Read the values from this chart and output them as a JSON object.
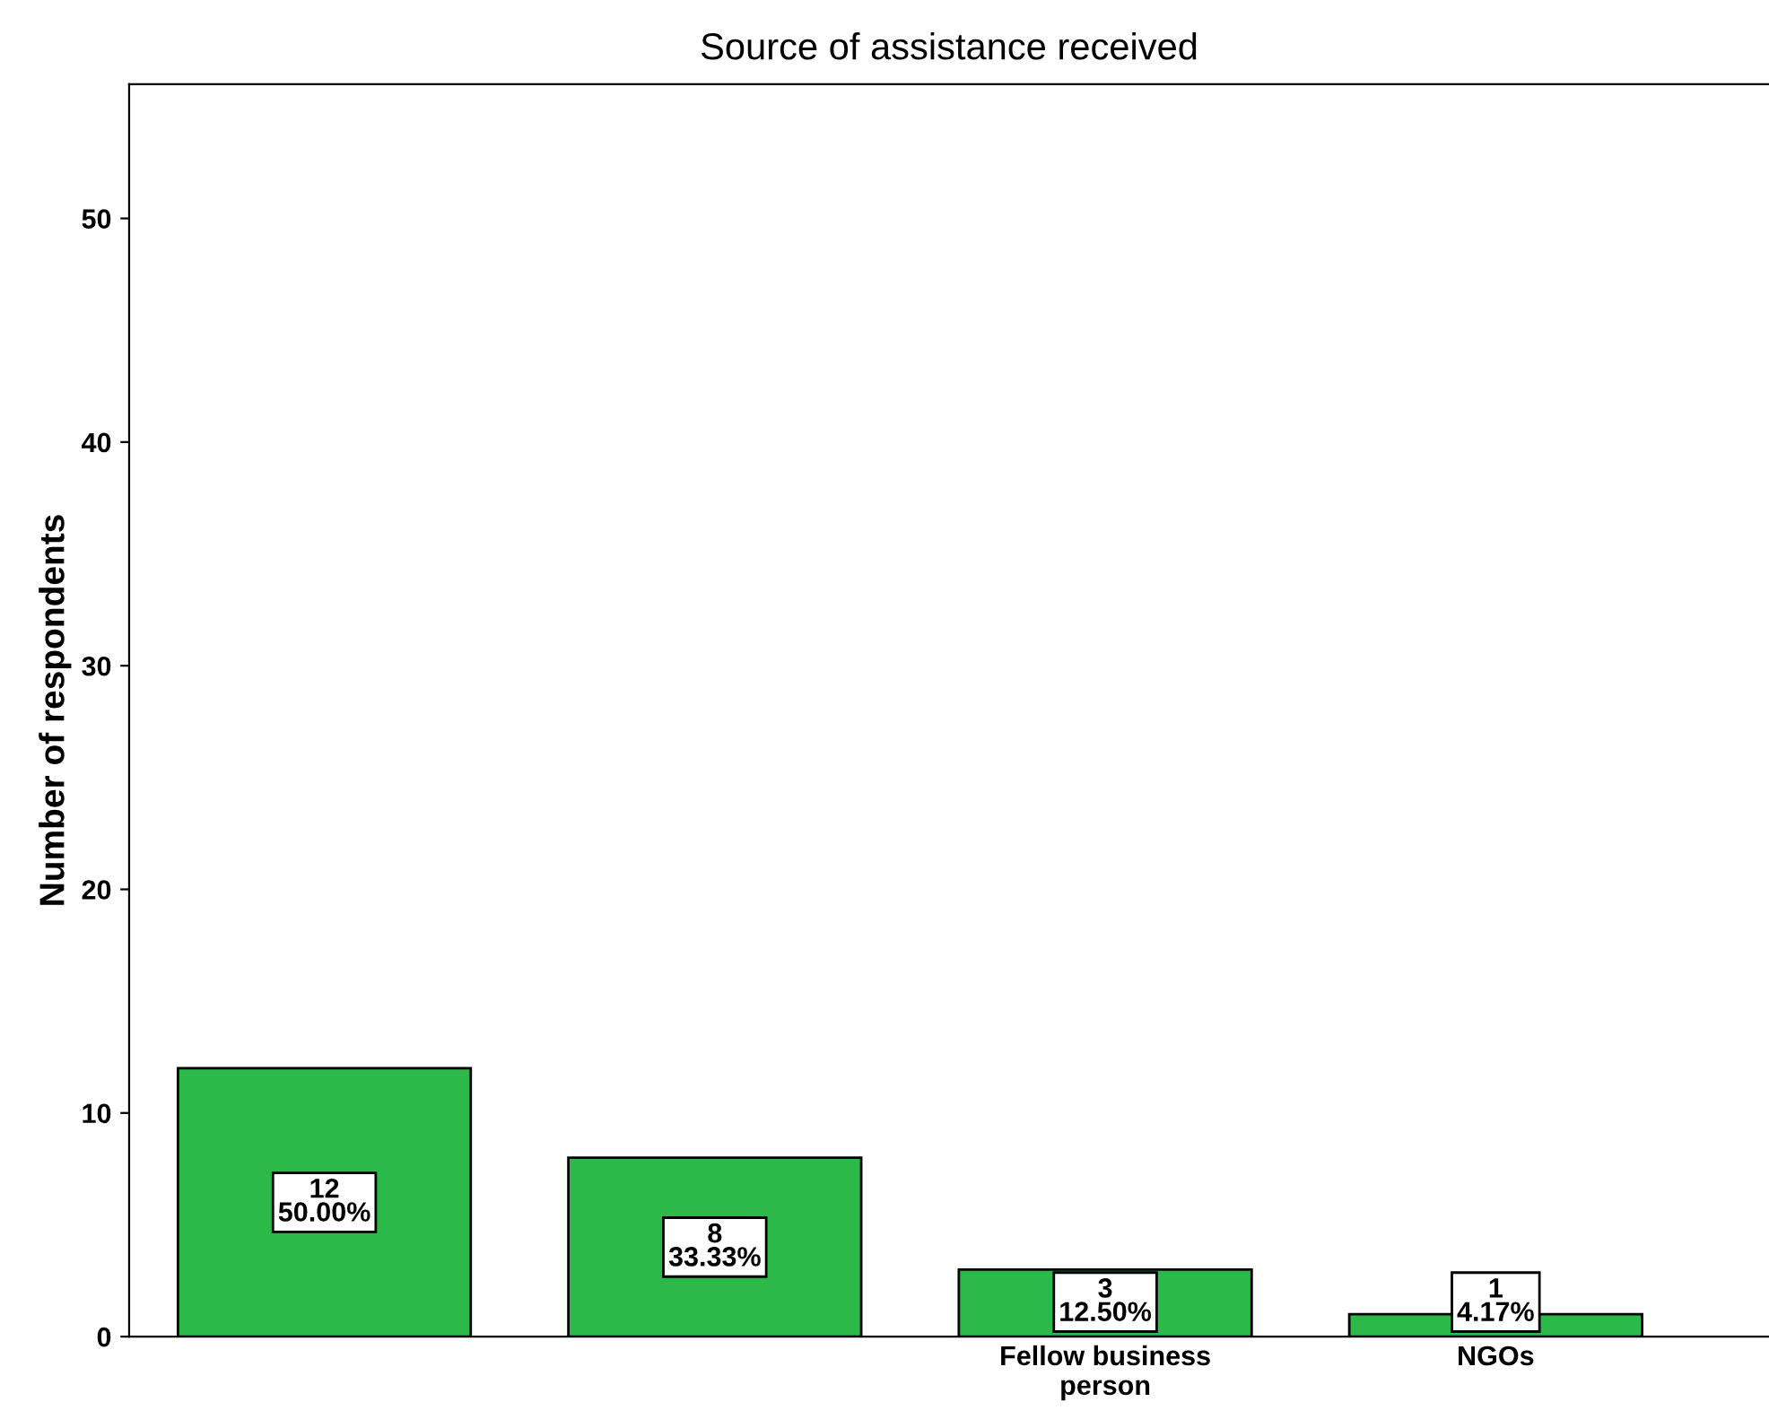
{
  "chart_data": {
    "type": "bar",
    "title": "Source of assistance received",
    "ylabel": "Number of respondents",
    "categories": [
      null,
      null,
      "Fellow business\nperson",
      "NGOs"
    ],
    "values": [
      12,
      8,
      3,
      1
    ],
    "color": "#2db84a",
    "value_labels": [
      "12\n50.00%",
      "8\n33.33%",
      "3\n12.50%",
      "1\n4.17%"
    ],
    "ylim": [
      0,
      56
    ],
    "yticks": [
      0,
      10,
      20,
      30,
      40,
      50
    ],
    "grid": false,
    "legend": false
  }
}
